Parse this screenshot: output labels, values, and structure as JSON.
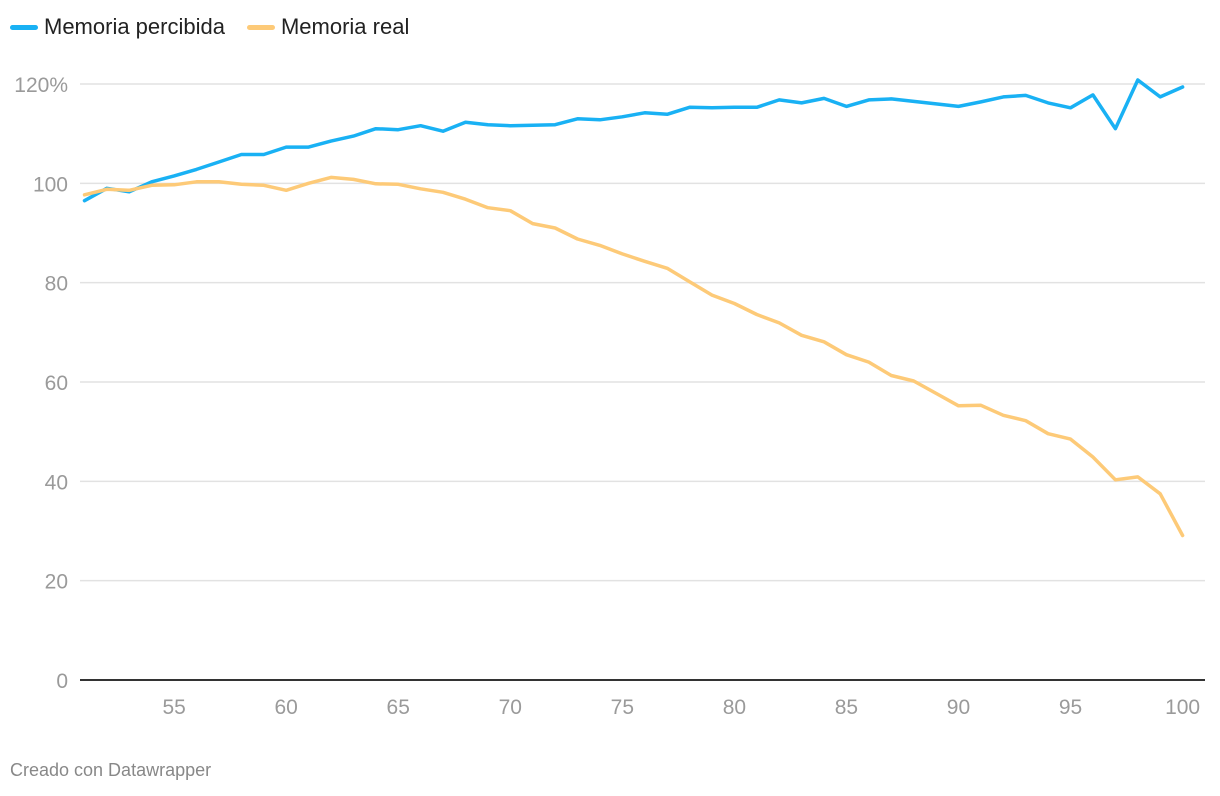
{
  "chart_data": {
    "type": "line",
    "title": "",
    "xlabel": "",
    "ylabel": "",
    "x": [
      51,
      52,
      53,
      54,
      55,
      56,
      57,
      58,
      59,
      60,
      61,
      62,
      63,
      64,
      65,
      66,
      67,
      68,
      69,
      70,
      71,
      72,
      73,
      74,
      75,
      76,
      77,
      78,
      79,
      80,
      81,
      82,
      83,
      84,
      85,
      86,
      87,
      88,
      89,
      90,
      91,
      92,
      93,
      94,
      95,
      96,
      97,
      98,
      99,
      100
    ],
    "xlim": [
      50.8,
      101
    ],
    "ylim": [
      0,
      120
    ],
    "x_ticks": [
      55,
      60,
      65,
      70,
      75,
      80,
      85,
      90,
      95,
      100
    ],
    "y_ticks": [
      0,
      20,
      40,
      60,
      80,
      100,
      120
    ],
    "y_tick_labels": [
      "0",
      "20",
      "40",
      "60",
      "80",
      "100",
      "120%"
    ],
    "grid": true,
    "legend_position": "top-left",
    "series": [
      {
        "name": "Memoria percibida",
        "color": "#19b1f4",
        "values": [
          96.5,
          99,
          98.3,
          100.3,
          101.5,
          102.8,
          104.3,
          105.8,
          105.8,
          107.3,
          107.3,
          108.5,
          109.5,
          111,
          110.8,
          111.6,
          110.5,
          112.3,
          111.8,
          111.6,
          111.7,
          111.8,
          113,
          112.8,
          113.4,
          114.2,
          113.9,
          115.3,
          115.2,
          115.3,
          115.3,
          116.8,
          116.2,
          117.1,
          115.5,
          116.8,
          117,
          116.5,
          116,
          115.5,
          116.4,
          117.4,
          117.7,
          116.2,
          115.2,
          117.8,
          111,
          120.8,
          117.4,
          119.4
        ]
      },
      {
        "name": "Memoria real",
        "color": "#fdca78",
        "values": [
          97.7,
          98.8,
          98.6,
          99.6,
          99.7,
          100.3,
          100.3,
          99.8,
          99.6,
          98.6,
          100,
          101.2,
          100.8,
          99.9,
          99.8,
          98.9,
          98.2,
          96.8,
          95.1,
          94.5,
          91.9,
          91,
          88.8,
          87.5,
          85.8,
          84.3,
          82.9,
          80.2,
          77.5,
          75.8,
          73.6,
          71.9,
          69.4,
          68.1,
          65.5,
          64,
          61.3,
          60.2,
          57.7,
          55.2,
          55.3,
          53.3,
          52.2,
          49.6,
          48.5,
          44.9,
          40.3,
          40.9,
          37.5,
          29.1
        ]
      }
    ]
  },
  "footer": {
    "credit": "Creado con Datawrapper"
  }
}
